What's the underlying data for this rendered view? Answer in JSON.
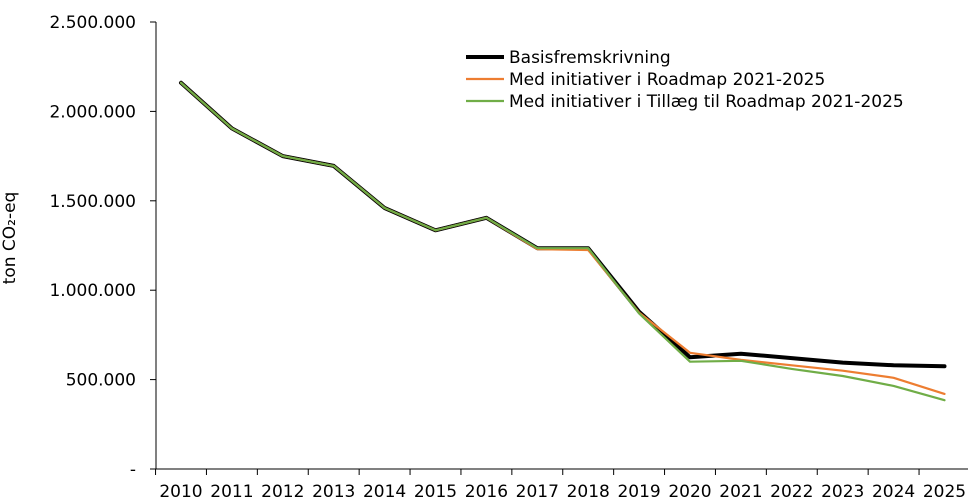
{
  "chart_data": {
    "type": "line",
    "ylabel": "ton CO₂-eq",
    "x": [
      "2010",
      "2011",
      "2012",
      "2013",
      "2014",
      "2015",
      "2016",
      "2017",
      "2018",
      "2019",
      "2020",
      "2021",
      "2022",
      "2023",
      "2024",
      "2025"
    ],
    "ylim": [
      0,
      2500000
    ],
    "yticks": [
      {
        "value": 0,
        "label": "-"
      },
      {
        "value": 500000,
        "label": "500.000"
      },
      {
        "value": 1000000,
        "label": "1.000.000"
      },
      {
        "value": 1500000,
        "label": "1.500.000"
      },
      {
        "value": 2000000,
        "label": "2.000.000"
      },
      {
        "value": 2500000,
        "label": "2.500.000"
      }
    ],
    "grid": false,
    "legend_position": "top-right",
    "series": [
      {
        "name": "Basisfremskrivning",
        "color": "#000000",
        "values": [
          2160000,
          1905000,
          1750000,
          1695000,
          1460000,
          1335000,
          1405000,
          1235000,
          1235000,
          880000,
          625000,
          645000,
          620000,
          595000,
          580000,
          575000
        ]
      },
      {
        "name": "Med initiativer i Roadmap 2021-2025",
        "color": "#ed7d31",
        "values": [
          2160000,
          1905000,
          1750000,
          1695000,
          1460000,
          1335000,
          1405000,
          1230000,
          1225000,
          875000,
          650000,
          610000,
          580000,
          550000,
          510000,
          420000
        ]
      },
      {
        "name": "Med initiativer i Tillæg til Roadmap 2021-2025",
        "color": "#70ad47",
        "values": [
          2160000,
          1905000,
          1750000,
          1695000,
          1460000,
          1335000,
          1405000,
          1235000,
          1235000,
          870000,
          600000,
          605000,
          560000,
          520000,
          465000,
          385000
        ]
      }
    ]
  }
}
